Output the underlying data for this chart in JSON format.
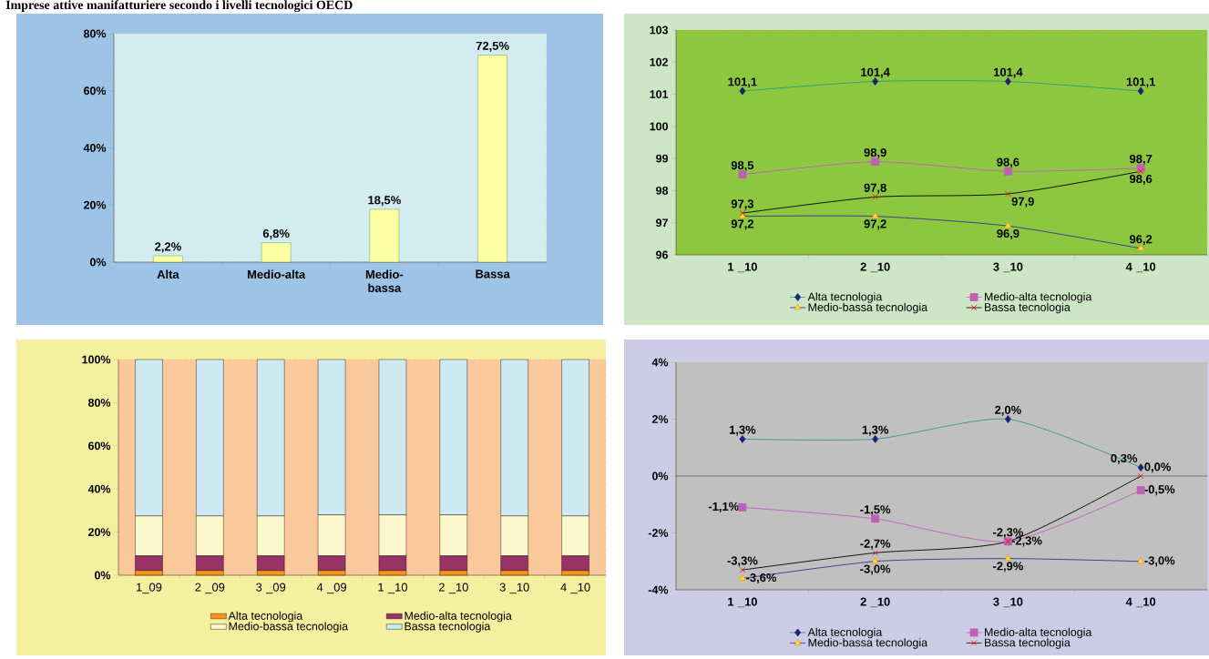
{
  "chart_data": [
    {
      "type": "bar",
      "title": "Imprese attive manifatturiere secondo i livelli tecnologici OECD",
      "categories": [
        "Alta",
        "Medio-alta",
        "Medio-bassa",
        "Bassa"
      ],
      "values": [
        2.2,
        6.8,
        18.5,
        72.5
      ],
      "value_labels": [
        "2,2%",
        "6,8%",
        "18,5%",
        "72,5%"
      ],
      "color": "#ffffa6",
      "ylim": [
        0,
        80
      ],
      "yticks": [
        {
          "value": 0,
          "label": "0%"
        },
        {
          "value": 20,
          "label": "20%"
        },
        {
          "value": 40,
          "label": "40%"
        },
        {
          "value": 60,
          "label": "60%"
        },
        {
          "value": 80,
          "label": "80%"
        }
      ]
    },
    {
      "type": "line",
      "categories": [
        "1 _10",
        "2 _10",
        "3 _10",
        "4 _10"
      ],
      "ylim": [
        96,
        103
      ],
      "yticks": [
        96,
        97,
        98,
        99,
        100,
        101,
        102,
        103
      ],
      "legend": "bottom",
      "series": [
        {
          "name": "Alta tecnologia",
          "color": "#339980",
          "marker": "diamond",
          "values": [
            101.1,
            101.4,
            101.4,
            101.1
          ],
          "value_labels": [
            "101,1",
            "101,4",
            "101,4",
            "101,1"
          ]
        },
        {
          "name": "Medio-alta tecnologia",
          "color": "#c060b8",
          "marker": "square",
          "values": [
            98.5,
            98.9,
            98.6,
            98.7
          ],
          "value_labels": [
            "98,5",
            "98,9",
            "98,6",
            "98,7"
          ]
        },
        {
          "name": "Medio-bassa tecnologia",
          "color": "#333399",
          "marker": "triangle",
          "values": [
            97.2,
            97.2,
            96.9,
            96.2
          ],
          "value_labels": [
            "97,2",
            "97,2",
            "96,9",
            "96,2"
          ]
        },
        {
          "name": "Bassa tecnologia",
          "color": "#000000",
          "marker": "cross",
          "values": [
            97.3,
            97.8,
            97.9,
            98.6
          ],
          "value_labels": [
            "97,3",
            "97,8",
            "97,9",
            "98,6"
          ]
        }
      ]
    },
    {
      "type": "bar",
      "stacked": true,
      "categories": [
        "1_09",
        "2 _09",
        "3 _09",
        "4 _09",
        "1 _10",
        "2 _10",
        "3 _10",
        "4 _10"
      ],
      "ylim": [
        0,
        100
      ],
      "legend": "bottom",
      "yticks": [
        {
          "value": 0,
          "label": "0%"
        },
        {
          "value": 20,
          "label": "20%"
        },
        {
          "value": 40,
          "label": "40%"
        },
        {
          "value": 60,
          "label": "60%"
        },
        {
          "value": 80,
          "label": "80%"
        },
        {
          "value": 100,
          "label": "100%"
        }
      ],
      "series": [
        {
          "name": "Alta tecnologia",
          "color": "#f7941d",
          "values": [
            2.2,
            2.2,
            2.2,
            2.2,
            2.2,
            2.2,
            2.2,
            2.2
          ]
        },
        {
          "name": "Medio-alta tecnologia",
          "color": "#993366",
          "values": [
            6.8,
            6.8,
            6.8,
            6.8,
            6.8,
            6.8,
            6.8,
            6.8
          ]
        },
        {
          "name": "Medio-bassa tecnologia",
          "color": "#fdf8cc",
          "values": [
            18.5,
            18.5,
            18.5,
            19.0,
            19.0,
            19.0,
            18.5,
            18.5
          ]
        },
        {
          "name": "Bassa tecnologia",
          "color": "#cdeaf2",
          "values": [
            72.5,
            72.5,
            72.5,
            72.0,
            72.0,
            72.0,
            72.5,
            72.5
          ]
        }
      ]
    },
    {
      "type": "line",
      "categories": [
        "1 _10",
        "2 _10",
        "3 _10",
        "4 _10"
      ],
      "ylim": [
        -4,
        4
      ],
      "legend": "bottom",
      "yticks": [
        {
          "value": -4,
          "label": "-4%"
        },
        {
          "value": -2,
          "label": "-2%"
        },
        {
          "value": 0,
          "label": "0%"
        },
        {
          "value": 2,
          "label": "2%"
        },
        {
          "value": 4,
          "label": "4%"
        }
      ],
      "series": [
        {
          "name": "Alta tecnologia",
          "color": "#339980",
          "marker": "diamond",
          "values": [
            1.3,
            1.3,
            2.0,
            0.3
          ],
          "value_labels": [
            "1,3%",
            "1,3%",
            "2,0%",
            "0,3%"
          ]
        },
        {
          "name": "Medio-alta tecnologia",
          "color": "#c060b8",
          "marker": "square",
          "values": [
            -1.1,
            -1.5,
            -2.3,
            -0.5
          ],
          "value_labels": [
            "-1,1%",
            "-1,5%",
            "-2,3%",
            "-0,5%"
          ]
        },
        {
          "name": "Medio-bassa tecnologia",
          "color": "#333399",
          "marker": "triangle",
          "values": [
            -3.6,
            -3.0,
            -2.9,
            -3.0
          ],
          "value_labels": [
            "-3,6%",
            "-3,0%",
            "-2,9%",
            "-3,0%"
          ]
        },
        {
          "name": "Bassa tecnologia",
          "color": "#000000",
          "marker": "cross",
          "values": [
            -3.3,
            -2.7,
            -2.3,
            0.0
          ],
          "value_labels": [
            "-3,3%",
            "-2,7%",
            "-2,3%",
            "0,0%"
          ]
        }
      ]
    }
  ]
}
